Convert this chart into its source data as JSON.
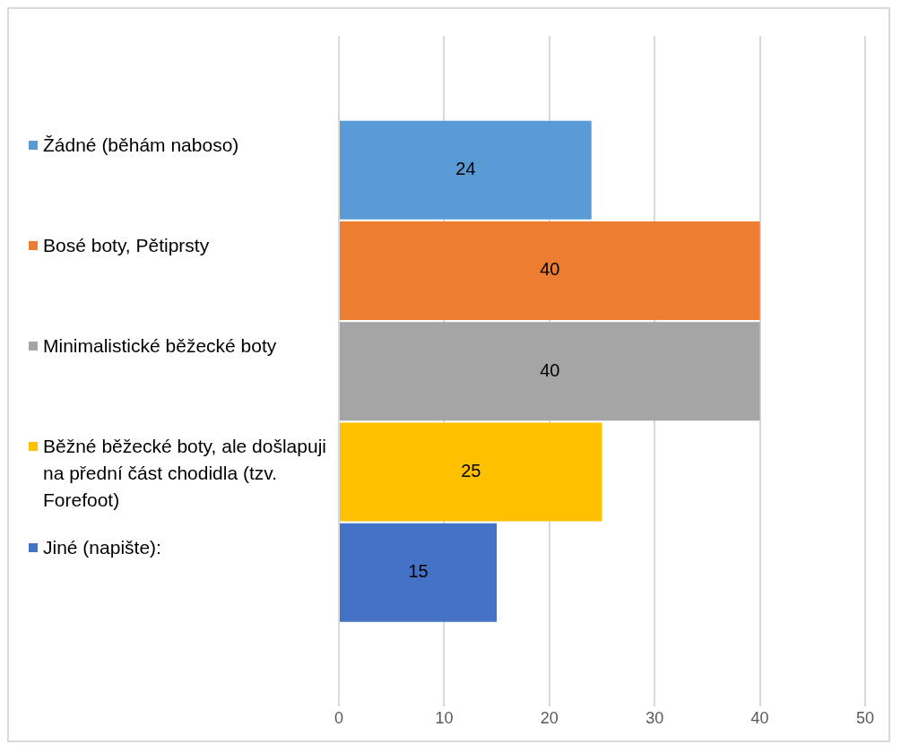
{
  "chart_data": {
    "type": "bar",
    "orientation": "horizontal",
    "categories": [
      null
    ],
    "series": [
      {
        "name": "Žádné (běhám naboso)",
        "color": "#5b9bd5",
        "values": [
          24
        ]
      },
      {
        "name": "Bosé boty, Pětiprsty",
        "color": "#ed7d31",
        "values": [
          40
        ]
      },
      {
        "name": "Minimalistické běžecké boty",
        "color": "#a5a5a5",
        "values": [
          40
        ]
      },
      {
        "name": "Běžné běžecké boty, ale došlapuji na přední část chodidla (tzv. Forefoot)",
        "color": "#ffc000",
        "values": [
          25
        ]
      },
      {
        "name": "Jiné (napište):",
        "color": "#4472c4",
        "values": [
          15
        ]
      }
    ],
    "xlim": [
      0,
      50
    ],
    "xticks": [
      0,
      10,
      20,
      30,
      40,
      50
    ],
    "grid": "x",
    "legend": "left",
    "data_labels": true
  }
}
